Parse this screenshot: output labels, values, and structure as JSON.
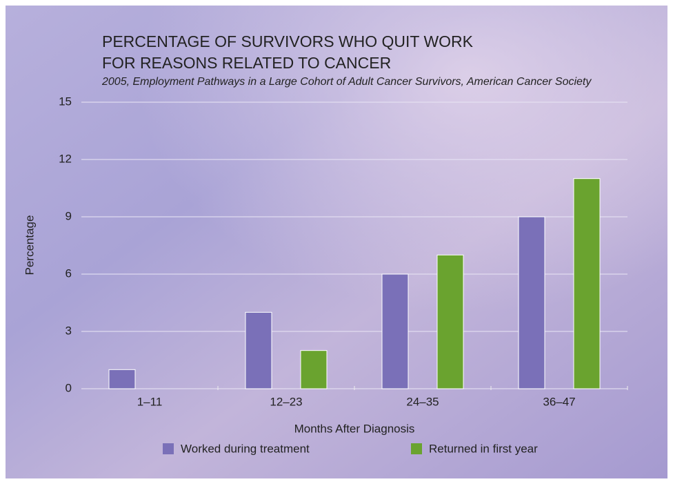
{
  "chart_data": {
    "type": "bar",
    "title": [
      "PERCENTAGE OF SURVIVORS WHO QUIT WORK",
      "FOR REASONS RELATED TO CANCER"
    ],
    "subtitle": "2005, Employment Pathways in a Large Cohort of Adult Cancer Survivors, American Cancer Society",
    "x_label": "Months After Diagnosis",
    "y_label": "Percentage",
    "categories": [
      "1–11",
      "12–23",
      "24–35",
      "36–47"
    ],
    "series": [
      {
        "name": "Worked during treatment",
        "color": "#7a70b8",
        "values": [
          1,
          4,
          6,
          9
        ]
      },
      {
        "name": "Returned in first year",
        "color": "#6aa32f",
        "values": [
          0,
          2,
          7,
          11
        ]
      }
    ],
    "ylim": [
      0,
      15
    ],
    "yticks": [
      0,
      3,
      6,
      9,
      12,
      15
    ],
    "grid": true
  }
}
